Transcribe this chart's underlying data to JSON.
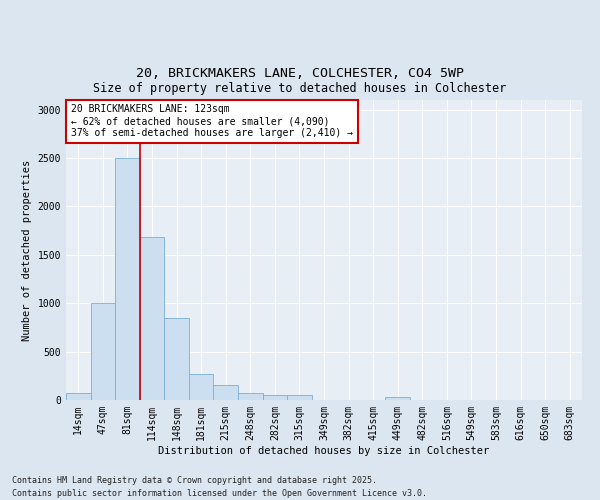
{
  "title": "20, BRICKMAKERS LANE, COLCHESTER, CO4 5WP",
  "subtitle": "Size of property relative to detached houses in Colchester",
  "xlabel": "Distribution of detached houses by size in Colchester",
  "ylabel": "Number of detached properties",
  "categories": [
    "14sqm",
    "47sqm",
    "81sqm",
    "114sqm",
    "148sqm",
    "181sqm",
    "215sqm",
    "248sqm",
    "282sqm",
    "315sqm",
    "349sqm",
    "382sqm",
    "415sqm",
    "449sqm",
    "482sqm",
    "516sqm",
    "549sqm",
    "583sqm",
    "616sqm",
    "650sqm",
    "683sqm"
  ],
  "values": [
    75,
    1000,
    2500,
    1680,
    850,
    270,
    150,
    75,
    55,
    50,
    0,
    0,
    0,
    35,
    0,
    0,
    0,
    0,
    0,
    0,
    0
  ],
  "bar_color": "#ccdff0",
  "bar_edge_color": "#7aafd4",
  "vline_x": 2.5,
  "vline_color": "#cc0000",
  "ylim": [
    0,
    3100
  ],
  "yticks": [
    0,
    500,
    1000,
    1500,
    2000,
    2500,
    3000
  ],
  "annotation_text_line1": "20 BRICKMAKERS LANE: 123sqm",
  "annotation_text_line2": "← 62% of detached houses are smaller (4,090)",
  "annotation_text_line3": "37% of semi-detached houses are larger (2,410) →",
  "annotation_box_edge": "#cc0000",
  "footer_line1": "Contains HM Land Registry data © Crown copyright and database right 2025.",
  "footer_line2": "Contains public sector information licensed under the Open Government Licence v3.0.",
  "bg_color": "#dce6f0",
  "plot_bg_color": "#e8eef5",
  "grid_color": "#ffffff",
  "title_fontsize": 9.5,
  "tick_fontsize": 7,
  "label_fontsize": 7.5
}
